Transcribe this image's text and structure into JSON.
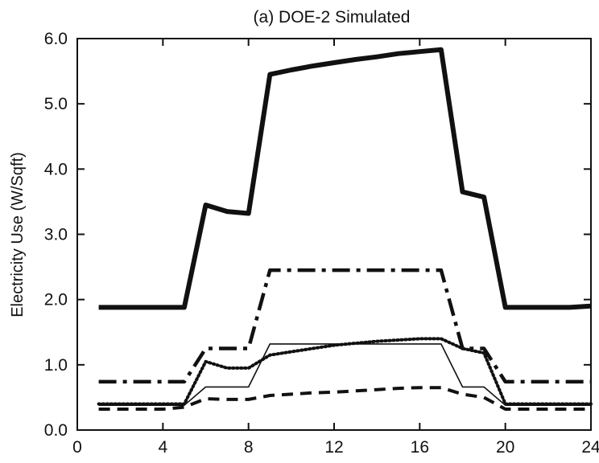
{
  "chart_data": {
    "type": "line",
    "title": "(a) DOE-2 Simulated",
    "xlabel": "",
    "ylabel": "Electricity Use (W/Sqft)",
    "xlim": [
      0,
      24
    ],
    "ylim": [
      0,
      6
    ],
    "x_ticks": [
      0,
      4,
      8,
      12,
      16,
      20,
      24
    ],
    "x_tick_labels": [
      "0",
      "4",
      "8",
      "12",
      "16",
      "20",
      "24"
    ],
    "y_ticks": [
      0,
      1,
      2,
      3,
      4,
      5,
      6
    ],
    "y_tick_labels": [
      "0.0",
      "1.0",
      "2.0",
      "3.0",
      "4.0",
      "5.0",
      "6.0"
    ],
    "grid": false,
    "legend": "none",
    "series": [
      {
        "style": "thick-solid",
        "x": [
          1,
          2,
          3,
          4,
          5,
          6,
          7,
          8,
          9,
          10,
          11,
          12,
          13,
          14,
          15,
          16,
          17,
          18,
          19,
          20,
          21,
          22,
          23,
          24
        ],
        "y": [
          1.88,
          1.88,
          1.88,
          1.88,
          1.88,
          3.45,
          3.35,
          3.32,
          5.45,
          5.52,
          5.58,
          5.63,
          5.68,
          5.72,
          5.77,
          5.8,
          5.83,
          3.65,
          3.57,
          1.88,
          1.88,
          1.88,
          1.88,
          1.9
        ]
      },
      {
        "style": "dash-dot",
        "x": [
          1,
          2,
          3,
          4,
          5,
          6,
          7,
          8,
          9,
          10,
          11,
          12,
          13,
          14,
          15,
          16,
          17,
          18,
          19,
          20,
          21,
          22,
          23,
          24
        ],
        "y": [
          0.74,
          0.74,
          0.74,
          0.74,
          0.74,
          1.25,
          1.25,
          1.25,
          2.45,
          2.45,
          2.45,
          2.45,
          2.45,
          2.45,
          2.45,
          2.45,
          2.45,
          1.25,
          1.25,
          0.74,
          0.74,
          0.74,
          0.74,
          0.74
        ]
      },
      {
        "style": "dotted-thick",
        "x": [
          1,
          2,
          3,
          4,
          5,
          6,
          7,
          8,
          9,
          10,
          11,
          12,
          13,
          14,
          15,
          16,
          17,
          18,
          19,
          20,
          21,
          22,
          23,
          24
        ],
        "y": [
          0.4,
          0.4,
          0.4,
          0.4,
          0.4,
          1.05,
          0.95,
          0.95,
          1.15,
          1.2,
          1.25,
          1.3,
          1.33,
          1.36,
          1.38,
          1.4,
          1.4,
          1.25,
          1.18,
          0.4,
          0.4,
          0.4,
          0.4,
          0.4
        ]
      },
      {
        "style": "thin-solid",
        "x": [
          1,
          2,
          3,
          4,
          5,
          6,
          7,
          8,
          9,
          10,
          11,
          12,
          13,
          14,
          15,
          16,
          17,
          18,
          19,
          20,
          21,
          22,
          23,
          24
        ],
        "y": [
          0.38,
          0.38,
          0.38,
          0.38,
          0.38,
          0.66,
          0.66,
          0.66,
          1.32,
          1.32,
          1.32,
          1.32,
          1.32,
          1.32,
          1.32,
          1.32,
          1.32,
          0.66,
          0.66,
          0.38,
          0.38,
          0.38,
          0.38,
          0.38
        ]
      },
      {
        "style": "dashed",
        "x": [
          1,
          2,
          3,
          4,
          5,
          6,
          7,
          8,
          9,
          10,
          11,
          12,
          13,
          14,
          15,
          16,
          17,
          18,
          19,
          20,
          21,
          22,
          23,
          24
        ],
        "y": [
          0.32,
          0.32,
          0.32,
          0.32,
          0.35,
          0.48,
          0.47,
          0.47,
          0.53,
          0.55,
          0.57,
          0.58,
          0.6,
          0.62,
          0.64,
          0.65,
          0.65,
          0.55,
          0.5,
          0.32,
          0.32,
          0.32,
          0.32,
          0.32
        ]
      }
    ]
  }
}
